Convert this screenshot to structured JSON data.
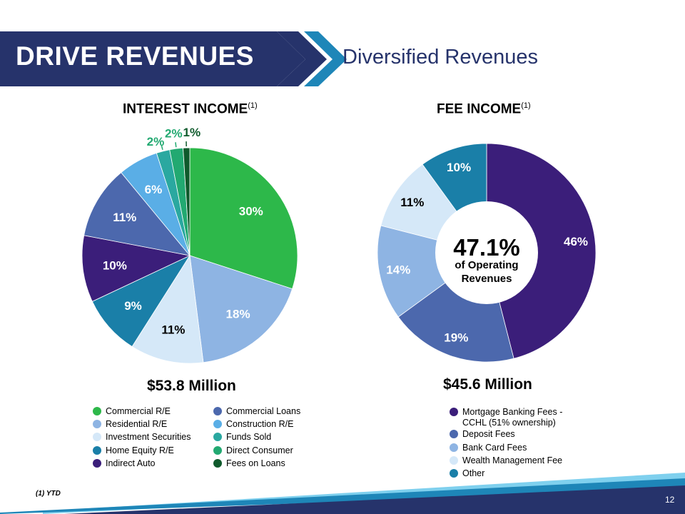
{
  "header": {
    "banner_title": "DRIVE REVENUES",
    "subtitle": "Diversified Revenues"
  },
  "footnote": "(1) YTD",
  "page_number": "12",
  "colors": {
    "navy": "#26336b",
    "cyan": "#1e86b8",
    "light_blue": "#7fd0ee"
  },
  "chart_data": [
    {
      "type": "pie",
      "title": "INTEREST INCOME",
      "title_sup": "(1)",
      "total_label": "$53.8 Million",
      "slices": [
        {
          "label": "Commercial R/E",
          "value": 30,
          "value_label": "30%",
          "color": "#2db84a"
        },
        {
          "label": "Residential R/E",
          "value": 18,
          "value_label": "18%",
          "color": "#8eb4e3"
        },
        {
          "label": "Investment Securities",
          "value": 11,
          "value_label": "11%",
          "color": "#d5e8f8"
        },
        {
          "label": "Home Equity R/E",
          "value": 9,
          "value_label": "9%",
          "color": "#1a7fa8"
        },
        {
          "label": "Indirect Auto",
          "value": 10,
          "value_label": "10%",
          "color": "#3b1e7a"
        },
        {
          "label": "Commercial Loans",
          "value": 11,
          "value_label": "11%",
          "color": "#4c68ad"
        },
        {
          "label": "Construction R/E",
          "value": 6,
          "value_label": "6%",
          "color": "#5aaee6"
        },
        {
          "label": "Funds Sold",
          "value": 2,
          "value_label": "2%",
          "color": "#2aa8a0"
        },
        {
          "label": "Direct Consumer",
          "value": 2,
          "value_label": "2%",
          "color": "#22a971"
        },
        {
          "label": "Fees on Loans",
          "value": 1,
          "value_label": "1%",
          "color": "#0f5a2c"
        }
      ],
      "legend": [
        [
          "Commercial R/E",
          "Residential R/E",
          "Investment Securities",
          "Home Equity R/E",
          "Indirect Auto"
        ],
        [
          "Commercial Loans",
          "Construction R/E",
          "Funds Sold",
          "Direct Consumer",
          "Fees on Loans"
        ]
      ]
    },
    {
      "type": "pie",
      "title": "FEE INCOME",
      "title_sup": "(1)",
      "total_label": "$45.6 Million",
      "center_value": "47.1%",
      "center_text": [
        "of Operating",
        "Revenues"
      ],
      "slices": [
        {
          "label": "Mortgage Banking Fees - CCHL (51% ownership)",
          "value": 46,
          "value_label": "46%",
          "color": "#3b1e7a"
        },
        {
          "label": "Deposit Fees",
          "value": 19,
          "value_label": "19%",
          "color": "#4c68ad"
        },
        {
          "label": "Bank Card Fees",
          "value": 14,
          "value_label": "14%",
          "color": "#8eb4e3"
        },
        {
          "label": "Wealth Management Fee",
          "value": 11,
          "value_label": "11%",
          "color": "#d5e8f8"
        },
        {
          "label": "Other",
          "value": 10,
          "value_label": "10%",
          "color": "#1a7fa8"
        }
      ],
      "legend": [
        [
          "Mortgage Banking Fees -",
          "CCHL (51% ownership)"
        ],
        [
          "Deposit Fees"
        ],
        [
          "Bank Card Fees"
        ],
        [
          "Wealth Management Fee"
        ],
        [
          "Other"
        ]
      ]
    }
  ]
}
